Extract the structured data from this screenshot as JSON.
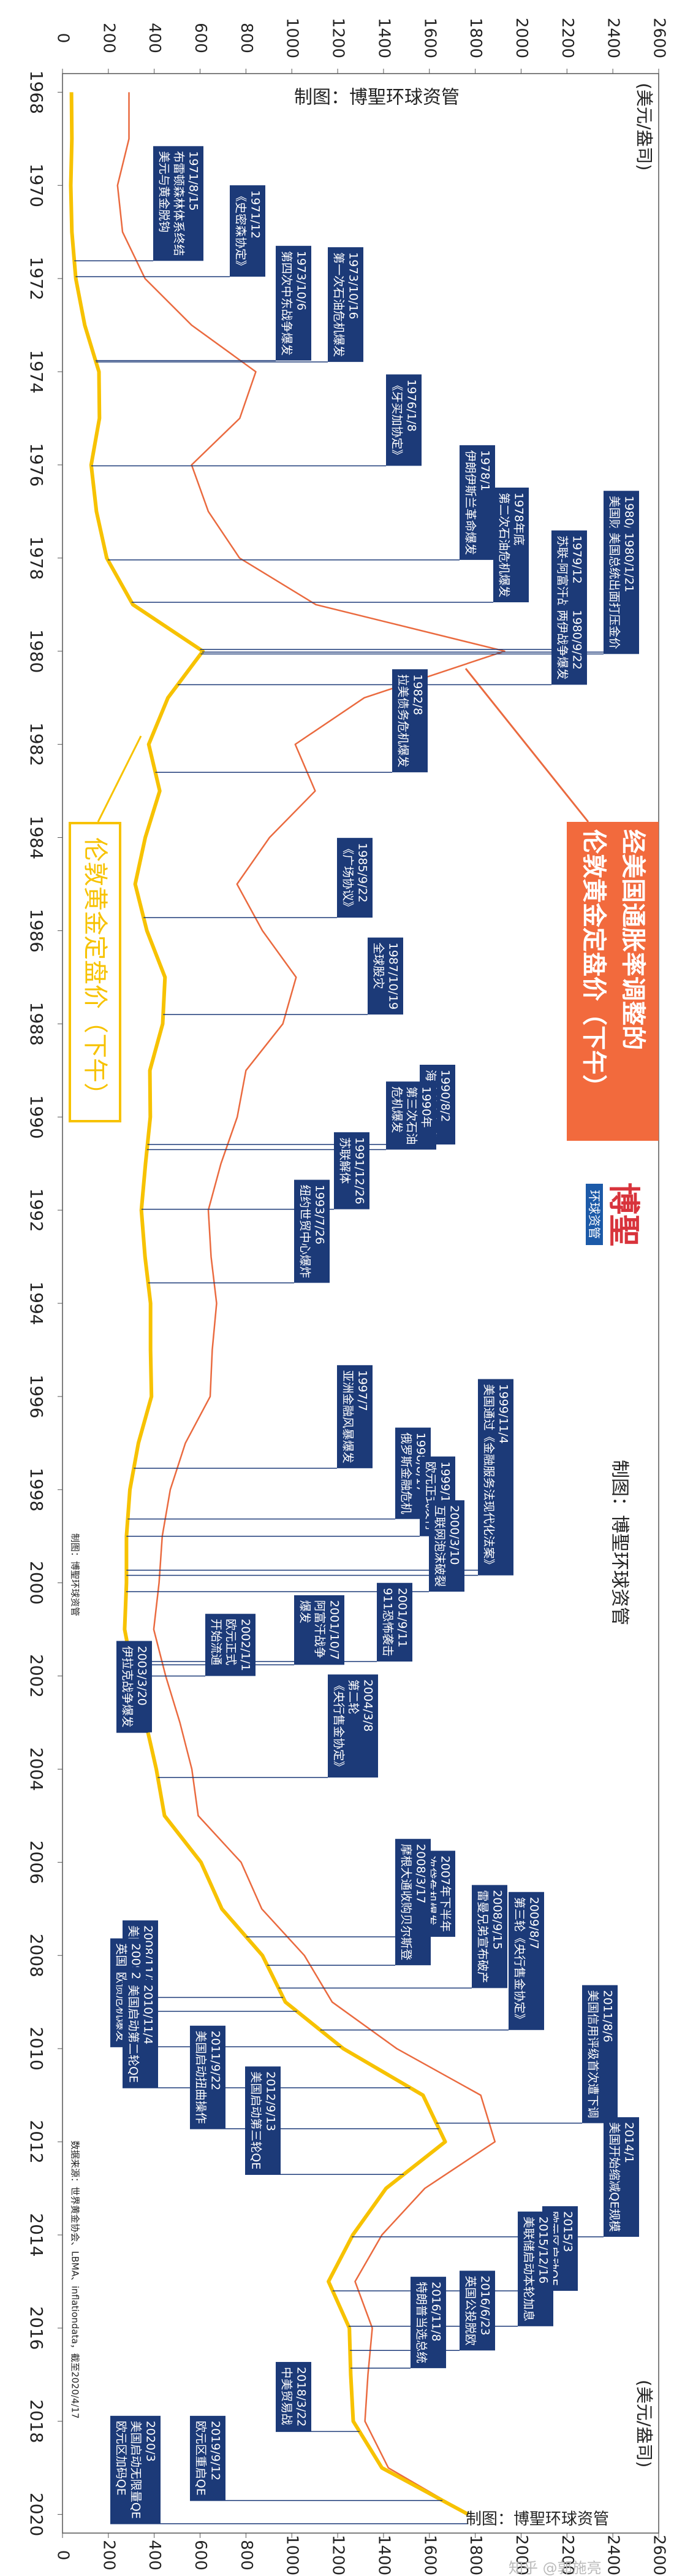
{
  "chart_data": {
    "type": "line",
    "credit": "制图：博聖环球资管",
    "source": "数据来源：世界黄金协会、LBMA、inflationdata，截至2020/4/17",
    "y_label": "(美元/盎司)",
    "logo": {
      "name": "博聖",
      "sub": "环球资管"
    },
    "watermark": "知乎 @郭施亮",
    "x": [
      1968,
      1969,
      1970,
      1971,
      1972,
      1973,
      1974,
      1975,
      1976,
      1977,
      1978,
      1979,
      1980,
      1981,
      1982,
      1983,
      1984,
      1985,
      1986,
      1987,
      1988,
      1989,
      1990,
      1991,
      1992,
      1993,
      1994,
      1995,
      1996,
      1997,
      1998,
      1999,
      2000,
      2001,
      2002,
      2003,
      2004,
      2005,
      2006,
      2007,
      2008,
      2009,
      2010,
      2011,
      2012,
      2013,
      2014,
      2015,
      2016,
      2017,
      2018,
      2019,
      2020
    ],
    "xlim": [
      1967.6,
      2020.4
    ],
    "xticks": [
      1968,
      1970,
      1972,
      1974,
      1976,
      1978,
      1980,
      1982,
      1984,
      1986,
      1988,
      1990,
      1992,
      1994,
      1996,
      1998,
      2000,
      2002,
      2004,
      2006,
      2008,
      2010,
      2012,
      2014,
      2016,
      2018,
      2020
    ],
    "ylim": [
      0,
      2600
    ],
    "yticks": [
      0,
      200,
      400,
      600,
      800,
      1000,
      1200,
      1400,
      1600,
      1800,
      2000,
      2200,
      2400,
      2600
    ],
    "series": [
      {
        "name": "伦敦黄金定盘价（下午）",
        "color": "#f7c200",
        "values": [
          39,
          41,
          36,
          41,
          58,
          97,
          159,
          161,
          125,
          148,
          193,
          307,
          612,
          460,
          376,
          424,
          361,
          317,
          368,
          447,
          437,
          381,
          383,
          362,
          344,
          360,
          384,
          384,
          388,
          331,
          294,
          279,
          279,
          271,
          310,
          363,
          409,
          445,
          604,
          695,
          872,
          972,
          1225,
          1572,
          1669,
          1411,
          1266,
          1160,
          1251,
          1257,
          1268,
          1393,
          1770
        ]
      },
      {
        "name": "经美国通胀率调整的\n伦敦黄金定盘价（下午）",
        "color": "#ea6a3f",
        "values": [
          290,
          290,
          240,
          262,
          360,
          563,
          843,
          773,
          563,
          636,
          772,
          1105,
          1928,
          1316,
          1015,
          1102,
          903,
          761,
          872,
          1019,
          961,
          800,
          762,
          691,
          636,
          648,
          672,
          653,
          644,
          536,
          470,
          435,
          421,
          398,
          450,
          512,
          564,
          592,
          779,
          869,
          1055,
          1176,
          1458,
          1824,
          1886,
          1580,
          1393,
          1276,
          1351,
          1332,
          1319,
          1421,
          1770
        ]
      }
    ],
    "annotations": [
      {
        "x": 1971.62,
        "date": "1971/8/15",
        "text": [
          "布雷顿森林体系终结",
          "美元与黄金脱钩"
        ]
      },
      {
        "x": 1971.96,
        "date": "1971/12",
        "text": [
          "《史密森协定》"
        ]
      },
      {
        "x": 1973.76,
        "date": "1973/10/6",
        "text": [
          "第四次中东战争爆发"
        ]
      },
      {
        "x": 1973.79,
        "date": "1973/10/16",
        "text": [
          "第一次石油危机爆发"
        ]
      },
      {
        "x": 1976.02,
        "date": "1976/1/8",
        "text": [
          "《牙买加协定》"
        ]
      },
      {
        "x": 1978.04,
        "date": "1978/1",
        "text": [
          "伊朗伊斯兰革命爆发"
        ]
      },
      {
        "x": 1978.95,
        "date": "1978年底",
        "text": [
          "第二次石油危机爆发"
        ]
      },
      {
        "x": 1979.96,
        "date": "1979/12",
        "text": [
          "苏联-阿富汗战争爆发"
        ]
      },
      {
        "x": 1980.02,
        "date": "1980/1",
        "text": [
          "美国财政部宣布停止出售黄金"
        ]
      },
      {
        "x": 1980.06,
        "date": "1980/1/21",
        "text": [
          "美国总统出面打压金价"
        ]
      },
      {
        "x": 1980.72,
        "date": "1980/9/22",
        "text": [
          "两伊战争爆发"
        ]
      },
      {
        "x": 1982.6,
        "date": "1982/8",
        "text": [
          "拉美债务危机爆发"
        ]
      },
      {
        "x": 1985.72,
        "date": "1985/9/22",
        "text": [
          "《广场协议》"
        ]
      },
      {
        "x": 1987.8,
        "date": "1987/10/19",
        "text": [
          "全球股灾"
        ]
      },
      {
        "x": 1990.59,
        "date": "1990/8/2",
        "text": [
          "海湾战争爆发"
        ]
      },
      {
        "x": 1990.7,
        "date": "1990年",
        "text": [
          "第三次石油",
          "危机爆发"
        ]
      },
      {
        "x": 1991.98,
        "date": "1991/12/26",
        "text": [
          "苏联解体"
        ]
      },
      {
        "x": 1993.56,
        "date": "1993/7/26",
        "text": [
          "纽约世贸中心爆炸"
        ]
      },
      {
        "x": 1997.54,
        "date": "1997/7",
        "text": [
          "亚洲金融风暴爆发"
        ]
      },
      {
        "x": 1998.63,
        "date": "1998/8/17",
        "text": [
          "俄罗斯金融危机"
        ]
      },
      {
        "x": 1999.0,
        "date": "1999/1/1",
        "text": [
          "欧元正式发行"
        ]
      },
      {
        "x": 1999.73,
        "date": "1999/9/26",
        "text": [
          "第一轮《央行售金协定》"
        ]
      },
      {
        "x": 1999.84,
        "date": "1999/11/4",
        "text": [
          "美国通过《金融服务法现代化法案》"
        ]
      },
      {
        "x": 2000.19,
        "date": "2000/3/10",
        "text": [
          "互联网泡沫破裂"
        ]
      },
      {
        "x": 2001.69,
        "date": "2001/9/11",
        "text": [
          "911恐怖袭击"
        ]
      },
      {
        "x": 2001.76,
        "date": "2001/10/7",
        "text": [
          "阿富汗战争",
          "爆发"
        ]
      },
      {
        "x": 2002.0,
        "date": "2002/1/1",
        "text": [
          "欧元正式",
          "开始流通"
        ]
      },
      {
        "x": 2003.21,
        "date": "2003/3/20",
        "text": [
          "伊拉克战争爆发"
        ]
      },
      {
        "x": 2004.18,
        "date": "2004/3/8",
        "text": [
          "第二轮",
          "《央行售金协定》"
        ]
      },
      {
        "x": 2007.6,
        "date": "2007年下半年",
        "text": [
          "次贷危机爆发"
        ]
      },
      {
        "x": 2008.21,
        "date": "2008/3/17",
        "text": [
          "摩根大通收购贝尔斯登"
        ]
      },
      {
        "x": 2008.7,
        "date": "2008/9/15",
        "text": [
          "雷曼兄弟宣布破产"
        ]
      },
      {
        "x": 2008.9,
        "date": "2008/11/25",
        "text": [
          "美国启动QE"
        ]
      },
      {
        "x": 2009.2,
        "date": "2009/3",
        "text": [
          "英国启动QE"
        ]
      },
      {
        "x": 2009.6,
        "date": "2009/8/7",
        "text": [
          "第三轮《央行售金协定》"
        ]
      },
      {
        "x": 2009.96,
        "date": "2009/12",
        "text": [
          "欧债危机爆发"
        ]
      },
      {
        "x": 2010.84,
        "date": "2010/11/4",
        "text": [
          "美国启动第二轮QE"
        ]
      },
      {
        "x": 2011.6,
        "date": "2011/8/6",
        "text": [
          "美国信用评级首次遭下调"
        ]
      },
      {
        "x": 2011.72,
        "date": "2011/9/22",
        "text": [
          "美国启动扭曲操作"
        ]
      },
      {
        "x": 2012.7,
        "date": "2012/9/13",
        "text": [
          "美国启动第三轮QE"
        ]
      },
      {
        "x": 2014.04,
        "date": "2014/1",
        "text": [
          "美国开始缩减QE规模"
        ]
      },
      {
        "x": 2015.2,
        "date": "2015/3",
        "text": [
          "欧元区启动QE"
        ]
      },
      {
        "x": 2015.96,
        "date": "2015/12/16",
        "text": [
          "美联储启动本轮加息"
        ]
      },
      {
        "x": 2016.48,
        "date": "2016/6/23",
        "text": [
          "英国公投脱欧"
        ]
      },
      {
        "x": 2016.86,
        "date": "2016/11/8",
        "text": [
          "特朗普当选总统"
        ]
      },
      {
        "x": 2018.22,
        "date": "2018/3/22",
        "text": [
          "中美贸易战"
        ]
      },
      {
        "x": 2019.7,
        "date": "2019/9/12",
        "text": [
          "欧元区重启QE"
        ]
      },
      {
        "x": 2020.2,
        "date": "2020/3",
        "text": [
          "美国启动无限量QE",
          "欧元区加码QE"
        ]
      }
    ]
  }
}
